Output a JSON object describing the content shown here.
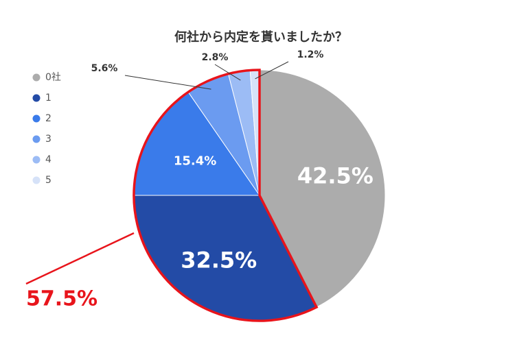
{
  "chart_data": {
    "type": "pie",
    "title": "何社から内定を貰いましたか？",
    "categories": [
      "0社",
      "1",
      "2",
      "3",
      "4",
      "5"
    ],
    "values": [
      42.5,
      32.5,
      15.4,
      5.6,
      2.8,
      1.2
    ],
    "value_labels": [
      "42.5%",
      "32.5%",
      "15.4%",
      "5.6%",
      "2.8%",
      "1.2%"
    ],
    "colors": [
      "#acacac",
      "#234ba6",
      "#3a7bea",
      "#6b9bf0",
      "#9cbcf5",
      "#d6e2f8"
    ],
    "legend": "left",
    "annotation": "57.5%",
    "annotation_color": "#e8141b"
  }
}
